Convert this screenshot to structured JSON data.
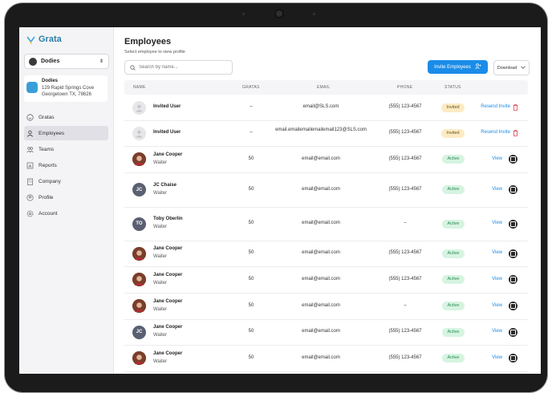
{
  "app": {
    "name": "Grata"
  },
  "sidebar": {
    "org_name": "Dodies",
    "location": {
      "name": "Dodies",
      "address_line1": "129 Rapid Springs Cove",
      "address_line2": "Georgetown TX, 78626"
    },
    "items": [
      {
        "label": "Gratas",
        "icon": "smiley-icon"
      },
      {
        "label": "Employees",
        "icon": "user-icon"
      },
      {
        "label": "Teams",
        "icon": "team-icon"
      },
      {
        "label": "Reports",
        "icon": "chart-icon"
      },
      {
        "label": "Company",
        "icon": "building-icon"
      },
      {
        "label": "Profile",
        "icon": "profile-icon"
      },
      {
        "label": "Account",
        "icon": "gear-icon"
      }
    ]
  },
  "main": {
    "title": "Employees",
    "subtitle": "Select employee to view profile",
    "search_placeholder": "Search by name...",
    "invite_label": "Invite Employees",
    "download_label": "Download",
    "columns": [
      "NAME",
      "GRATAS",
      "EMAIL",
      "PHONE",
      "STATUS"
    ],
    "rows": [
      {
        "name": "Invited User",
        "role": "",
        "gratas": "–",
        "email": "email@SLS.com",
        "phone": "(555) 123-4567",
        "status": "Invited",
        "action": "Resend Invite"
      },
      {
        "name": "Invited User",
        "role": "",
        "gratas": "–",
        "email": "email.emailemailemailemail123@SLS.com",
        "phone": "(555) 123-4567",
        "status": "Invited",
        "action": "Resend Invite"
      },
      {
        "name": "Jane Cooper",
        "role": "Waiter",
        "gratas": "50",
        "email": "email@email.com",
        "phone": "(555) 123-4567",
        "status": "Active",
        "action": "View"
      },
      {
        "name": "JC Chaise",
        "role": "Waiter",
        "gratas": "50",
        "email": "email@email.com",
        "phone": "(555) 123-4567",
        "status": "Active",
        "action": "View",
        "initials": "JC"
      },
      {
        "name": "Toby Oberlin",
        "role": "Waiter",
        "gratas": "50",
        "email": "email@email.com",
        "phone": "–",
        "status": "Active",
        "action": "View",
        "initials": "TO"
      },
      {
        "name": "Jane Cooper",
        "role": "Waiter",
        "gratas": "50",
        "email": "email@email.com",
        "phone": "(555) 123-4567",
        "status": "Active",
        "action": "View"
      },
      {
        "name": "Jane Cooper",
        "role": "Waiter",
        "gratas": "50",
        "email": "email@email.com",
        "phone": "(555) 123-4567",
        "status": "Active",
        "action": "View"
      },
      {
        "name": "Jane Cooper",
        "role": "Waiter",
        "gratas": "50",
        "email": "email@email.com",
        "phone": "–",
        "status": "Active",
        "action": "View"
      },
      {
        "name": "Jane Cooper",
        "role": "Waiter",
        "gratas": "50",
        "email": "email@email.com",
        "phone": "(555) 123-4567",
        "status": "Active",
        "action": "View",
        "initials": "JC"
      },
      {
        "name": "Jane Cooper",
        "role": "Waiter",
        "gratas": "50",
        "email": "email@email.com",
        "phone": "(555) 123-4567",
        "status": "Active",
        "action": "View"
      }
    ]
  }
}
